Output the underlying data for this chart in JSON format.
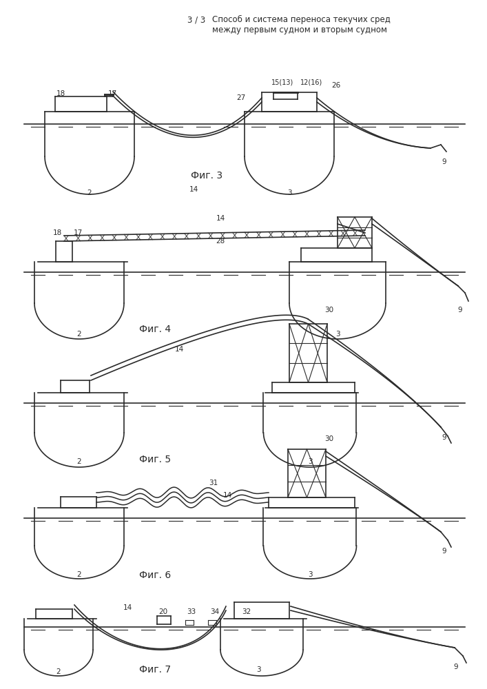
{
  "title_page": "3 / 3",
  "title_text": "Способ и система переноса текучих сред\nмежду первым судном и вторым судном",
  "fig3_label": "Фиг. 3",
  "fig4_label": "Фиг. 4",
  "fig5_label": "Фиг. 5",
  "fig6_label": "Фиг. 6",
  "fig7_label": "Фиг. 7",
  "bg_color": "#ffffff",
  "line_color": "#2a2a2a",
  "font_size_title": 8.5,
  "font_size_fig": 10,
  "font_size_number": 7.5
}
